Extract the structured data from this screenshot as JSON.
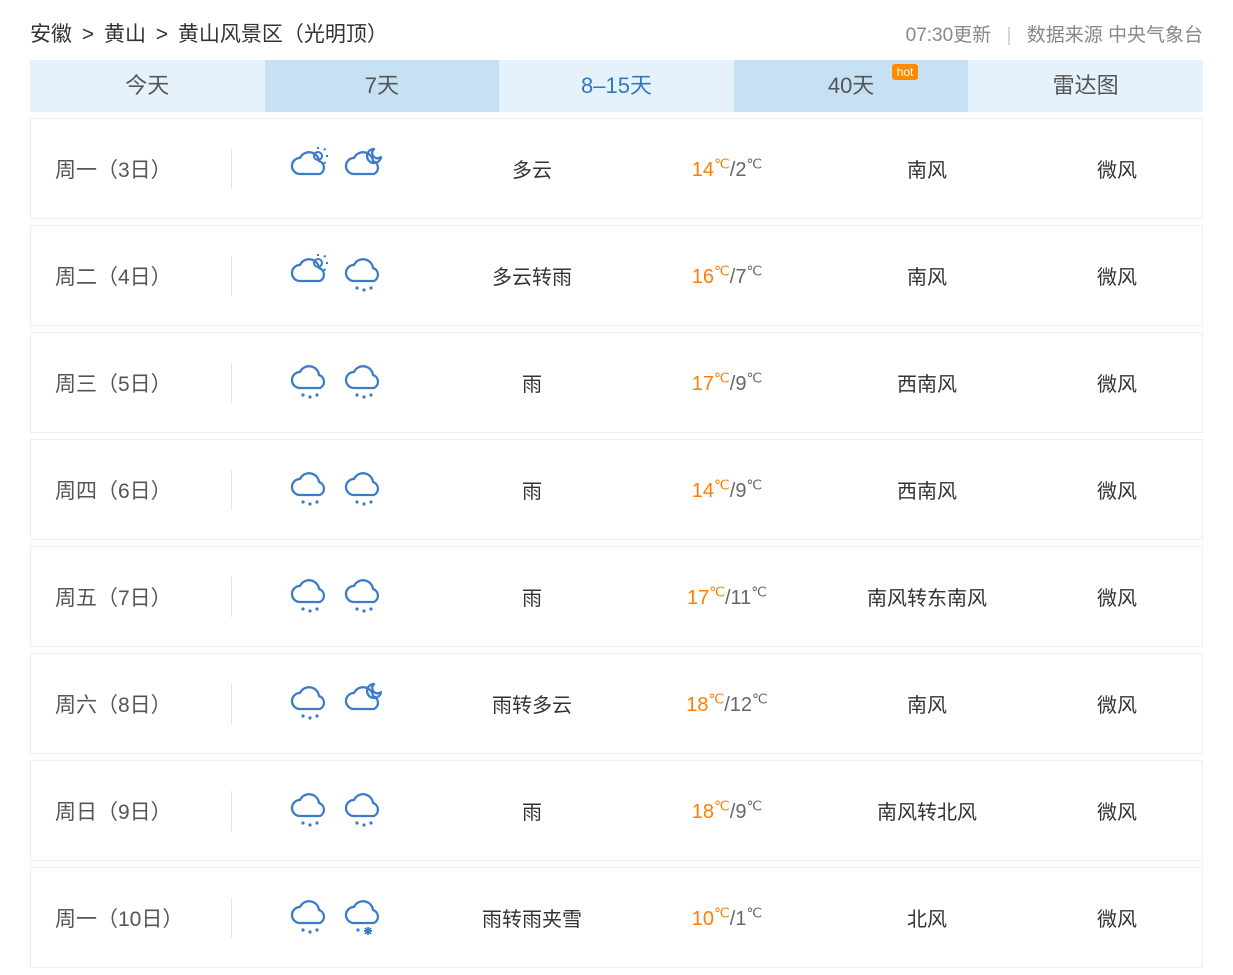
{
  "breadcrumb": {
    "province": "安徽",
    "city": "黄山",
    "location": "黄山风景区（光明顶）",
    "sep": ">"
  },
  "meta": {
    "update": "07:30更新",
    "source_label": "数据来源",
    "source_value": "中央气象台"
  },
  "tabs": [
    {
      "label": "今天",
      "active": false,
      "alt": false,
      "hot": false
    },
    {
      "label": "7天",
      "active": false,
      "alt": true,
      "hot": false
    },
    {
      "label": "8–15天",
      "active": true,
      "alt": false,
      "hot": false
    },
    {
      "label": "40天",
      "active": false,
      "alt": true,
      "hot": true,
      "hot_label": "hot"
    },
    {
      "label": "雷达图",
      "active": false,
      "alt": false,
      "hot": false
    }
  ],
  "colors": {
    "tab_bg": "#e6f2fb",
    "tab_bg_alt": "#c7e1f4",
    "tab_active_text": "#2e79c5",
    "hot_bg": "#ff8a00",
    "temp_high": "#ff7e00",
    "temp_low": "#666666",
    "icon_stroke": "#3a7cc7",
    "row_border": "#eeeeee"
  },
  "icon_types": [
    "sun-cloud",
    "moon-cloud",
    "rain-cloud",
    "sleet-cloud"
  ],
  "forecast": [
    {
      "day": "周一（3日）",
      "icon_day": "sun-cloud",
      "icon_night": "moon-cloud",
      "condition": "多云",
      "high": "14",
      "low": "2",
      "wind_dir": "南风",
      "wind_level": "微风"
    },
    {
      "day": "周二（4日）",
      "icon_day": "sun-cloud",
      "icon_night": "rain-cloud",
      "condition": "多云转雨",
      "high": "16",
      "low": "7",
      "wind_dir": "南风",
      "wind_level": "微风"
    },
    {
      "day": "周三（5日）",
      "icon_day": "rain-cloud",
      "icon_night": "rain-cloud",
      "condition": "雨",
      "high": "17",
      "low": "9",
      "wind_dir": "西南风",
      "wind_level": "微风"
    },
    {
      "day": "周四（6日）",
      "icon_day": "rain-cloud",
      "icon_night": "rain-cloud",
      "condition": "雨",
      "high": "14",
      "low": "9",
      "wind_dir": "西南风",
      "wind_level": "微风"
    },
    {
      "day": "周五（7日）",
      "icon_day": "rain-cloud",
      "icon_night": "rain-cloud",
      "condition": "雨",
      "high": "17",
      "low": "11",
      "wind_dir": "南风转东南风",
      "wind_level": "微风"
    },
    {
      "day": "周六（8日）",
      "icon_day": "rain-cloud",
      "icon_night": "moon-cloud",
      "condition": "雨转多云",
      "high": "18",
      "low": "12",
      "wind_dir": "南风",
      "wind_level": "微风"
    },
    {
      "day": "周日（9日）",
      "icon_day": "rain-cloud",
      "icon_night": "rain-cloud",
      "condition": "雨",
      "high": "18",
      "low": "9",
      "wind_dir": "南风转北风",
      "wind_level": "微风"
    },
    {
      "day": "周一（10日）",
      "icon_day": "rain-cloud",
      "icon_night": "sleet-cloud",
      "condition": "雨转雨夹雪",
      "high": "10",
      "low": "1",
      "wind_dir": "北风",
      "wind_level": "微风"
    }
  ]
}
